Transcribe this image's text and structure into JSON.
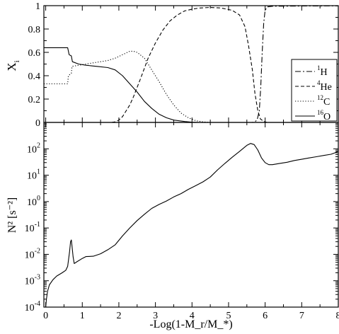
{
  "chart_data": [
    {
      "type": "line",
      "panel": "top",
      "ylabel": "X",
      "ylabel_sub": "i",
      "xlim": [
        -0.05,
        8
      ],
      "ylim": [
        0,
        1
      ],
      "y_ticks": [
        {
          "v": 0,
          "label": "0"
        },
        {
          "v": 0.2,
          "label": "0.2"
        },
        {
          "v": 0.4,
          "label": "0.4"
        },
        {
          "v": 0.6,
          "label": "0.6"
        },
        {
          "v": 0.8,
          "label": "0.8"
        },
        {
          "v": 1,
          "label": "1"
        }
      ],
      "grid": false,
      "legend_position": "right",
      "series": [
        {
          "name": "1H",
          "sup": "1",
          "base": "H",
          "color": "#000000",
          "dash": "8,3,2,3",
          "points": [
            [
              -0.05,
              0
            ],
            [
              5.62,
              0
            ],
            [
              5.7,
              0.002
            ],
            [
              5.78,
              0.02
            ],
            [
              5.84,
              0.1
            ],
            [
              5.88,
              0.3
            ],
            [
              5.92,
              0.6
            ],
            [
              5.96,
              0.85
            ],
            [
              6.0,
              0.96
            ],
            [
              6.06,
              0.99
            ],
            [
              6.2,
              0.995
            ],
            [
              7.0,
              0.997
            ],
            [
              8.0,
              0.998
            ]
          ]
        },
        {
          "name": "4He",
          "sup": "4",
          "base": "He",
          "color": "#000000",
          "dash": "5,3",
          "points": [
            [
              -0.05,
              0
            ],
            [
              1.8,
              0
            ],
            [
              1.9,
              0.005
            ],
            [
              2.0,
              0.02
            ],
            [
              2.1,
              0.05
            ],
            [
              2.2,
              0.1
            ],
            [
              2.3,
              0.15
            ],
            [
              2.4,
              0.22
            ],
            [
              2.6,
              0.38
            ],
            [
              2.8,
              0.55
            ],
            [
              3.0,
              0.68
            ],
            [
              3.2,
              0.79
            ],
            [
              3.4,
              0.87
            ],
            [
              3.6,
              0.92
            ],
            [
              3.8,
              0.955
            ],
            [
              4.0,
              0.97
            ],
            [
              4.2,
              0.98
            ],
            [
              4.5,
              0.985
            ],
            [
              4.8,
              0.98
            ],
            [
              5.1,
              0.96
            ],
            [
              5.3,
              0.92
            ],
            [
              5.45,
              0.82
            ],
            [
              5.55,
              0.65
            ],
            [
              5.65,
              0.45
            ],
            [
              5.72,
              0.25
            ],
            [
              5.8,
              0.1
            ],
            [
              5.87,
              0.03
            ],
            [
              5.95,
              0.01
            ],
            [
              6.05,
              0
            ],
            [
              8.0,
              0
            ]
          ]
        },
        {
          "name": "12C",
          "sup": "12",
          "base": "C",
          "color": "#000000",
          "dash": "1.2,2.4",
          "points": [
            [
              -0.05,
              0.33
            ],
            [
              0.6,
              0.33
            ],
            [
              0.62,
              0.4
            ],
            [
              0.7,
              0.42
            ],
            [
              0.72,
              0.48
            ],
            [
              0.9,
              0.49
            ],
            [
              1.1,
              0.5
            ],
            [
              1.3,
              0.51
            ],
            [
              1.5,
              0.52
            ],
            [
              1.7,
              0.53
            ],
            [
              1.9,
              0.55
            ],
            [
              2.1,
              0.58
            ],
            [
              2.3,
              0.61
            ],
            [
              2.4,
              0.61
            ],
            [
              2.5,
              0.6
            ],
            [
              2.7,
              0.55
            ],
            [
              2.9,
              0.45
            ],
            [
              3.1,
              0.35
            ],
            [
              3.3,
              0.24
            ],
            [
              3.5,
              0.15
            ],
            [
              3.7,
              0.08
            ],
            [
              3.9,
              0.04
            ],
            [
              4.1,
              0.015
            ],
            [
              4.3,
              0.005
            ],
            [
              4.5,
              0
            ],
            [
              8.0,
              0
            ]
          ]
        },
        {
          "name": "16O",
          "sup": "16",
          "base": "O",
          "color": "#000000",
          "dash": "",
          "points": [
            [
              -0.05,
              0.64
            ],
            [
              0.6,
              0.64
            ],
            [
              0.64,
              0.58
            ],
            [
              0.7,
              0.57
            ],
            [
              0.73,
              0.52
            ],
            [
              0.9,
              0.5
            ],
            [
              1.1,
              0.49
            ],
            [
              1.4,
              0.48
            ],
            [
              1.7,
              0.47
            ],
            [
              1.9,
              0.45
            ],
            [
              2.1,
              0.4
            ],
            [
              2.3,
              0.33
            ],
            [
              2.5,
              0.26
            ],
            [
              2.7,
              0.18
            ],
            [
              2.9,
              0.12
            ],
            [
              3.1,
              0.07
            ],
            [
              3.3,
              0.04
            ],
            [
              3.5,
              0.02
            ],
            [
              3.8,
              0.008
            ],
            [
              4.0,
              0.002
            ],
            [
              4.2,
              0
            ],
            [
              8.0,
              0
            ]
          ]
        }
      ]
    },
    {
      "type": "line",
      "panel": "bottom",
      "xlabel": "-Log(1-M_r/M_*)",
      "ylabel": "N² [s⁻²]",
      "yscale": "log",
      "xlim": [
        -0.05,
        8
      ],
      "ylim": [
        0.0001,
        1000
      ],
      "x_ticks": [
        {
          "v": 0,
          "label": "0"
        },
        {
          "v": 1,
          "label": "1"
        },
        {
          "v": 2,
          "label": "2"
        },
        {
          "v": 3,
          "label": "3"
        },
        {
          "v": 4,
          "label": "4"
        },
        {
          "v": 5,
          "label": "5"
        },
        {
          "v": 6,
          "label": "6"
        },
        {
          "v": 7,
          "label": "7"
        },
        {
          "v": 8,
          "label": "8"
        }
      ],
      "y_ticks": [
        {
          "v": 0.0001,
          "base": "10",
          "exp": "-4"
        },
        {
          "v": 0.001,
          "base": "10",
          "exp": "-3"
        },
        {
          "v": 0.01,
          "base": "10",
          "exp": "-2"
        },
        {
          "v": 0.1,
          "base": "10",
          "exp": "-1"
        },
        {
          "v": 1,
          "base": "10",
          "exp": "0"
        },
        {
          "v": 10,
          "base": "10",
          "exp": "1"
        },
        {
          "v": 100,
          "base": "10",
          "exp": "2"
        }
      ],
      "grid": false,
      "series": [
        {
          "name": "",
          "color": "#000000",
          "dash": "",
          "points": [
            [
              0.0,
              0.0001
            ],
            [
              0.02,
              0.0002
            ],
            [
              0.05,
              0.0004
            ],
            [
              0.1,
              0.0007
            ],
            [
              0.2,
              0.0011
            ],
            [
              0.3,
              0.0015
            ],
            [
              0.45,
              0.002
            ],
            [
              0.55,
              0.0025
            ],
            [
              0.6,
              0.0035
            ],
            [
              0.65,
              0.012
            ],
            [
              0.68,
              0.03
            ],
            [
              0.7,
              0.035
            ],
            [
              0.72,
              0.02
            ],
            [
              0.75,
              0.008
            ],
            [
              0.78,
              0.0045
            ],
            [
              0.85,
              0.0052
            ],
            [
              1.0,
              0.007
            ],
            [
              1.1,
              0.0082
            ],
            [
              1.3,
              0.0085
            ],
            [
              1.5,
              0.0105
            ],
            [
              1.7,
              0.015
            ],
            [
              1.9,
              0.023
            ],
            [
              2.1,
              0.05
            ],
            [
              2.3,
              0.1
            ],
            [
              2.5,
              0.19
            ],
            [
              2.7,
              0.33
            ],
            [
              2.9,
              0.55
            ],
            [
              3.1,
              0.78
            ],
            [
              3.3,
              1.05
            ],
            [
              3.5,
              1.5
            ],
            [
              3.7,
              2.0
            ],
            [
              3.9,
              2.9
            ],
            [
              4.1,
              4.0
            ],
            [
              4.3,
              5.6
            ],
            [
              4.5,
              8.5
            ],
            [
              4.7,
              16
            ],
            [
              4.9,
              28
            ],
            [
              5.1,
              48
            ],
            [
              5.3,
              80
            ],
            [
              5.5,
              135
            ],
            [
              5.6,
              160
            ],
            [
              5.7,
              145
            ],
            [
              5.8,
              90
            ],
            [
              5.9,
              45
            ],
            [
              6.0,
              30
            ],
            [
              6.1,
              25
            ],
            [
              6.2,
              25
            ],
            [
              6.4,
              28
            ],
            [
              6.6,
              31
            ],
            [
              6.8,
              36
            ],
            [
              7.0,
              40
            ],
            [
              7.2,
              45
            ],
            [
              7.4,
              50
            ],
            [
              7.6,
              56
            ],
            [
              7.8,
              62
            ],
            [
              7.9,
              70
            ],
            [
              8.0,
              80
            ]
          ]
        }
      ]
    }
  ]
}
